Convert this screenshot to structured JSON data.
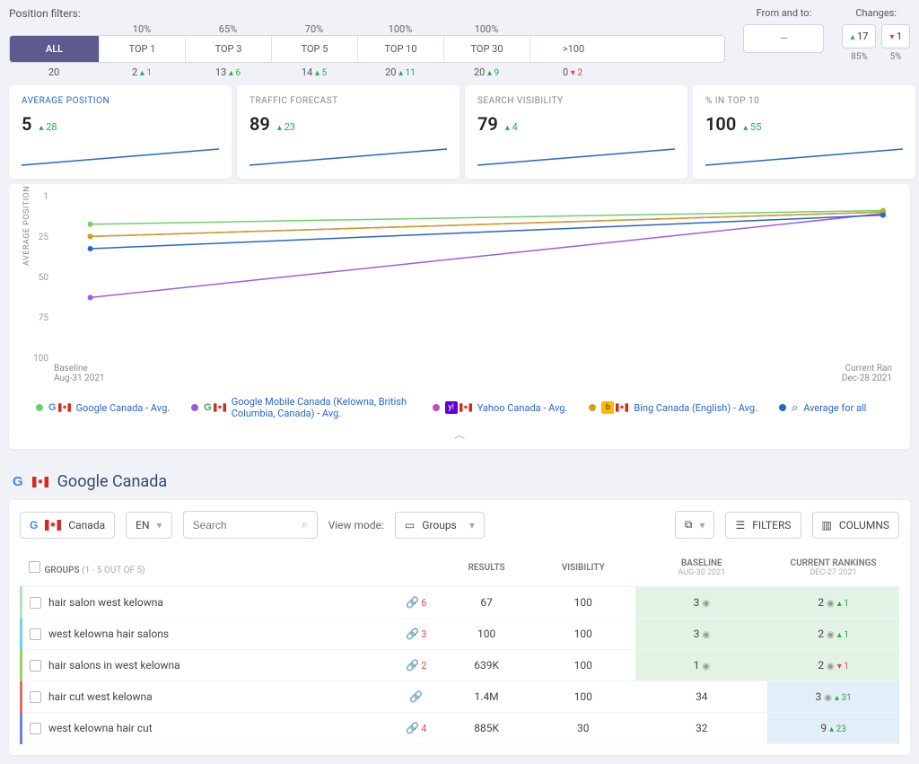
{
  "filters": {
    "title": "Position filters:",
    "tabs": [
      {
        "label": "ALL",
        "pct": "",
        "count": "20",
        "delta": "",
        "dir": ""
      },
      {
        "label": "TOP 1",
        "pct": "10%",
        "count": "2",
        "delta": "1",
        "dir": "up"
      },
      {
        "label": "TOP 3",
        "pct": "65%",
        "count": "13",
        "delta": "6",
        "dir": "up"
      },
      {
        "label": "TOP 5",
        "pct": "70%",
        "count": "14",
        "delta": "5",
        "dir": "up"
      },
      {
        "label": "TOP 10",
        "pct": "100%",
        "count": "20",
        "delta": "11",
        "dir": "up"
      },
      {
        "label": "TOP 30",
        "pct": "100%",
        "count": "20",
        "delta": "9",
        "dir": "up"
      },
      {
        "label": ">100",
        "pct": "",
        "count": "0",
        "delta": "2",
        "dir": "down"
      }
    ],
    "fromto_label": "From and to:",
    "fromto_value": "—",
    "changes_label": "Changes:",
    "change_up": "17",
    "change_down": "1",
    "change_up_pct": "85%",
    "change_down_pct": "5%"
  },
  "kpis": [
    {
      "title": "AVERAGE POSITION",
      "value": "5",
      "delta": "28",
      "highlight": true
    },
    {
      "title": "TRAFFIC FORECAST",
      "value": "89",
      "delta": "23",
      "highlight": false
    },
    {
      "title": "SEARCH VISIBILITY",
      "value": "79",
      "delta": "4",
      "highlight": false
    },
    {
      "title": "% IN TOP 10",
      "value": "100",
      "delta": "55",
      "highlight": false
    }
  ],
  "chart": {
    "y_label": "AVERAGE POSITION",
    "y_ticks": [
      "1",
      "25",
      "50",
      "75",
      "100"
    ],
    "x_left_top": "Baseline",
    "x_left_bottom": "Aug-31 2021",
    "x_right_top": "Current Ran",
    "x_right_bottom": "Dec-28 2021",
    "series": [
      {
        "name": "Google Canada - Avg.",
        "color": "#6fcf6f",
        "y0": 14,
        "y1": 5
      },
      {
        "name": "Google Mobile Canada (Kelowna, British Columbia, Canada) - Avg.",
        "color": "#9b5de5",
        "y0": 62,
        "y1": 7
      },
      {
        "name": "Yahoo Canada - Avg.",
        "color": "#c050c0",
        "y0": 22,
        "y1": 6
      },
      {
        "name": "Bing Canada (English) - Avg.",
        "color": "#d4a020",
        "y0": 22,
        "y1": 6
      },
      {
        "name": "Average for all",
        "color": "#2565d0",
        "y0": 30,
        "y1": 8
      }
    ]
  },
  "section": {
    "title": "Google Canada"
  },
  "table_controls": {
    "country": "Canada",
    "lang": "EN",
    "search_placeholder": "Search",
    "view_label": "View mode:",
    "view_value": "Groups",
    "filters_btn": "FILTERS",
    "columns_btn": "COLUMNS"
  },
  "table": {
    "headers": {
      "groups": "GROUPS",
      "groups_sub": "(1 - 5 OUT OF 5)",
      "results": "RESULTS",
      "visibility": "VISIBILITY",
      "baseline": "BASELINE",
      "baseline_sub": "AUG-30 2021",
      "current": "CURRENT RANKINGS",
      "current_sub": "DEC-27 2021"
    },
    "rows": [
      {
        "border": "#aee3c0",
        "keyword": "hair salon west kelowna",
        "link_count": "6",
        "link_color": "#e04848",
        "results": "67",
        "visibility": "100",
        "baseline": "3",
        "baseline_bg": "green",
        "baseline_pin": true,
        "current": "2",
        "current_bg": "green",
        "current_pin": true,
        "current_delta": "1",
        "current_dir": "up"
      },
      {
        "border": "#6fd3e8",
        "keyword": "west kelowna hair salons",
        "link_count": "3",
        "link_color": "#e04848",
        "results": "100",
        "visibility": "100",
        "baseline": "3",
        "baseline_bg": "green",
        "baseline_pin": true,
        "current": "2",
        "current_bg": "green",
        "current_pin": true,
        "current_delta": "1",
        "current_dir": "up"
      },
      {
        "border": "#9bd060",
        "keyword": "hair salons in west kelowna",
        "link_count": "2",
        "link_color": "#e04848",
        "results": "639K",
        "visibility": "100",
        "baseline": "1",
        "baseline_bg": "green",
        "baseline_pin": true,
        "current": "2",
        "current_bg": "green",
        "current_pin": true,
        "current_delta": "1",
        "current_dir": "down"
      },
      {
        "border": "#e06a6a",
        "keyword": "hair cut west kelowna",
        "link_count": "",
        "link_color": "",
        "results": "1.4M",
        "visibility": "100",
        "baseline": "34",
        "baseline_bg": "",
        "baseline_pin": false,
        "current": "3",
        "current_bg": "blue",
        "current_pin": true,
        "current_delta": "31",
        "current_dir": "up"
      },
      {
        "border": "#6a7fe0",
        "keyword": "west kelowna hair cut",
        "link_count": "4",
        "link_color": "#e04848",
        "results": "885K",
        "visibility": "30",
        "baseline": "32",
        "baseline_bg": "",
        "baseline_pin": false,
        "current": "9",
        "current_bg": "blue",
        "current_pin": false,
        "current_delta": "23",
        "current_dir": "up"
      }
    ]
  }
}
